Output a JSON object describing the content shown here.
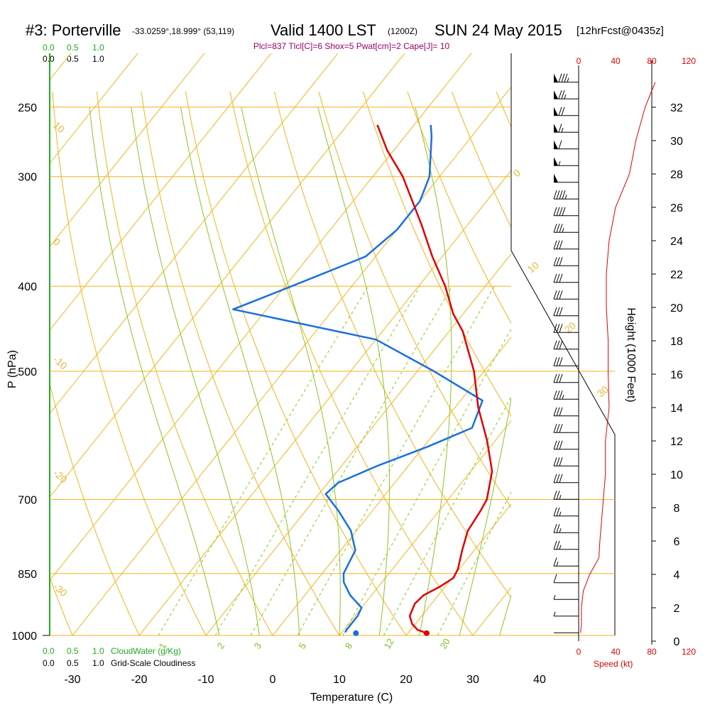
{
  "header": {
    "station": "#3: Porterville",
    "coords": "-33.0259°,18.999° (53,119)",
    "valid": "Valid 1400 LST",
    "utc": "(1200Z)",
    "date": "SUN 24 May 2015",
    "forecast": "[12hrFcst@0435z]",
    "params": "Plcl=837 Tlcl[C]=6 Shox=5 Pwat[cm]=2 Cape[J]= 10"
  },
  "colors": {
    "temperature": "#e00000",
    "dewpoint": "#1a6fe0",
    "isobar": "#f2b418",
    "isotherm": "#f2b418",
    "dry_adiabat": "#f2b418",
    "moist_adiabat": "#8cc520",
    "mixing_ratio": "#8cc520",
    "cloud_scale": "#22aa22",
    "speed": "#e00000",
    "params": "#990066"
  },
  "scales": {
    "cloudwater_ticks": [
      "0.0",
      "0.5",
      "1.0"
    ],
    "cloudiness_ticks": [
      "0.0",
      "0.5",
      "1.0"
    ],
    "cloudwater_label": "CloudWater (g/Kg)",
    "cloudiness_label": "Grid-Scale Cloudiness",
    "speed_ticks": [
      "0",
      "40",
      "80",
      "120"
    ],
    "speed_label": "Speed (kt)"
  },
  "chart_data": {
    "type": "skew-t",
    "xlabel": "Temperature (C)",
    "ylabel": "P (hPa)",
    "y2label": "Height (1000 Feet)",
    "pressure_ticks": [
      250,
      300,
      400,
      500,
      700,
      850,
      1000
    ],
    "temperature_ticks": [
      -30,
      -20,
      -10,
      0,
      10,
      20,
      30,
      40
    ],
    "height_ticks": [
      0,
      2,
      4,
      6,
      8,
      10,
      12,
      14,
      16,
      18,
      20,
      22,
      24,
      26,
      28,
      30,
      32
    ],
    "isotherm_labels": [
      "10",
      "0",
      "-10",
      "-20",
      "-30"
    ],
    "dry_adiabat_labels": [
      "0",
      "10",
      "20",
      "30"
    ],
    "mixing_ratio_labels": [
      "1",
      "2",
      "3",
      "5",
      "8",
      "12",
      "20"
    ],
    "temperature_profile": [
      {
        "p": 994,
        "t": 22.8
      },
      {
        "p": 985,
        "t": 21.0
      },
      {
        "p": 970,
        "t": 19.5
      },
      {
        "p": 950,
        "t": 18.2
      },
      {
        "p": 920,
        "t": 17.5
      },
      {
        "p": 900,
        "t": 17.8
      },
      {
        "p": 880,
        "t": 19.2
      },
      {
        "p": 860,
        "t": 20.2
      },
      {
        "p": 840,
        "t": 19.8
      },
      {
        "p": 800,
        "t": 18.2
      },
      {
        "p": 760,
        "t": 16.7
      },
      {
        "p": 720,
        "t": 16.2
      },
      {
        "p": 700,
        "t": 15.8
      },
      {
        "p": 650,
        "t": 13.2
      },
      {
        "p": 600,
        "t": 8.8
      },
      {
        "p": 550,
        "t": 3.5
      },
      {
        "p": 500,
        "t": -1.5
      },
      {
        "p": 450,
        "t": -8.0
      },
      {
        "p": 430,
        "t": -11.5
      },
      {
        "p": 400,
        "t": -16.0
      },
      {
        "p": 370,
        "t": -21.5
      },
      {
        "p": 340,
        "t": -27.0
      },
      {
        "p": 300,
        "t": -35.5
      },
      {
        "p": 280,
        "t": -41.0
      },
      {
        "p": 262,
        "t": -45.5
      }
    ],
    "dewpoint_profile": [
      {
        "p": 992,
        "t": 10.5
      },
      {
        "p": 985,
        "t": 10.4
      },
      {
        "p": 950,
        "t": 10.4
      },
      {
        "p": 930,
        "t": 10.0
      },
      {
        "p": 900,
        "t": 6.8
      },
      {
        "p": 870,
        "t": 4.3
      },
      {
        "p": 850,
        "t": 3.2
      },
      {
        "p": 800,
        "t": 2.2
      },
      {
        "p": 760,
        "t": -0.8
      },
      {
        "p": 720,
        "t": -5.2
      },
      {
        "p": 690,
        "t": -9.0
      },
      {
        "p": 670,
        "t": -8.5
      },
      {
        "p": 640,
        "t": -4.5
      },
      {
        "p": 610,
        "t": 0.5
      },
      {
        "p": 580,
        "t": 5.0
      },
      {
        "p": 540,
        "t": 3.3
      },
      {
        "p": 500,
        "t": -7.5
      },
      {
        "p": 460,
        "t": -20.0
      },
      {
        "p": 425,
        "t": -45.0
      },
      {
        "p": 400,
        "t": -39.0
      },
      {
        "p": 370,
        "t": -31.5
      },
      {
        "p": 345,
        "t": -30.0
      },
      {
        "p": 320,
        "t": -30.0
      },
      {
        "p": 300,
        "t": -31.5
      },
      {
        "p": 270,
        "t": -36.0
      },
      {
        "p": 262,
        "t": -37.5
      }
    ],
    "surface_temperature": 22.8,
    "surface_dewpoint": 12.2,
    "surface_pressure": 994,
    "wind_speed_profile": [
      {
        "h": 0.5,
        "kt": 2
      },
      {
        "h": 1,
        "kt": 3
      },
      {
        "h": 2,
        "kt": 3
      },
      {
        "h": 3,
        "kt": 5
      },
      {
        "h": 4,
        "kt": 12
      },
      {
        "h": 5,
        "kt": 22
      },
      {
        "h": 6,
        "kt": 23
      },
      {
        "h": 8,
        "kt": 26
      },
      {
        "h": 10,
        "kt": 29
      },
      {
        "h": 12,
        "kt": 29
      },
      {
        "h": 14,
        "kt": 33
      },
      {
        "h": 16,
        "kt": 32
      },
      {
        "h": 18,
        "kt": 32
      },
      {
        "h": 20,
        "kt": 30
      },
      {
        "h": 22,
        "kt": 30
      },
      {
        "h": 24,
        "kt": 33
      },
      {
        "h": 26,
        "kt": 40
      },
      {
        "h": 28,
        "kt": 55
      },
      {
        "h": 30,
        "kt": 62
      },
      {
        "h": 32,
        "kt": 72
      },
      {
        "h": 33.5,
        "kt": 83
      }
    ]
  }
}
